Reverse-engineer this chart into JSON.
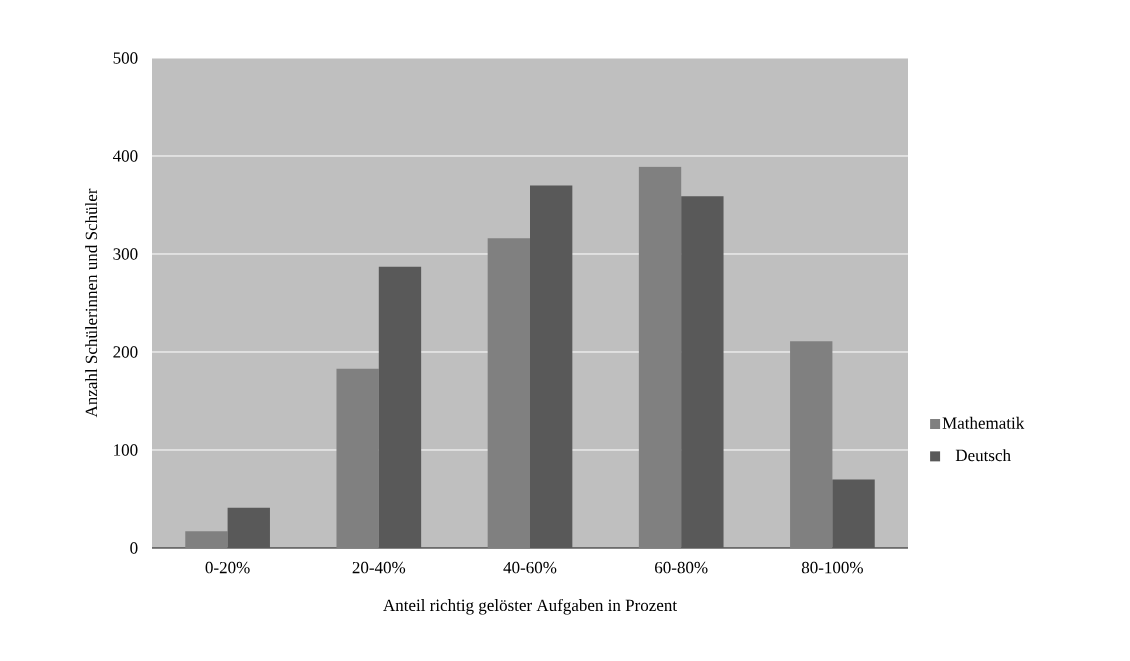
{
  "chart_data": {
    "type": "bar",
    "xlabel": "Anteil richtig gelöster Aufgaben in Prozent",
    "ylabel": "Anzahl Schülerinnen und Schüler",
    "categories": [
      "0-20%",
      "20-40%",
      "40-60%",
      "60-80%",
      "80-100%"
    ],
    "series": [
      {
        "name": "Mathematik",
        "color": "#808080",
        "values": [
          17,
          183,
          316,
          389,
          211
        ]
      },
      {
        "name": "Deutsch",
        "color": "#595959",
        "values": [
          41,
          287,
          370,
          359,
          70
        ]
      }
    ],
    "ylim": [
      0,
      500
    ],
    "yticks": [
      0,
      100,
      200,
      300,
      400,
      500
    ],
    "grid": "y",
    "legend": "right"
  }
}
